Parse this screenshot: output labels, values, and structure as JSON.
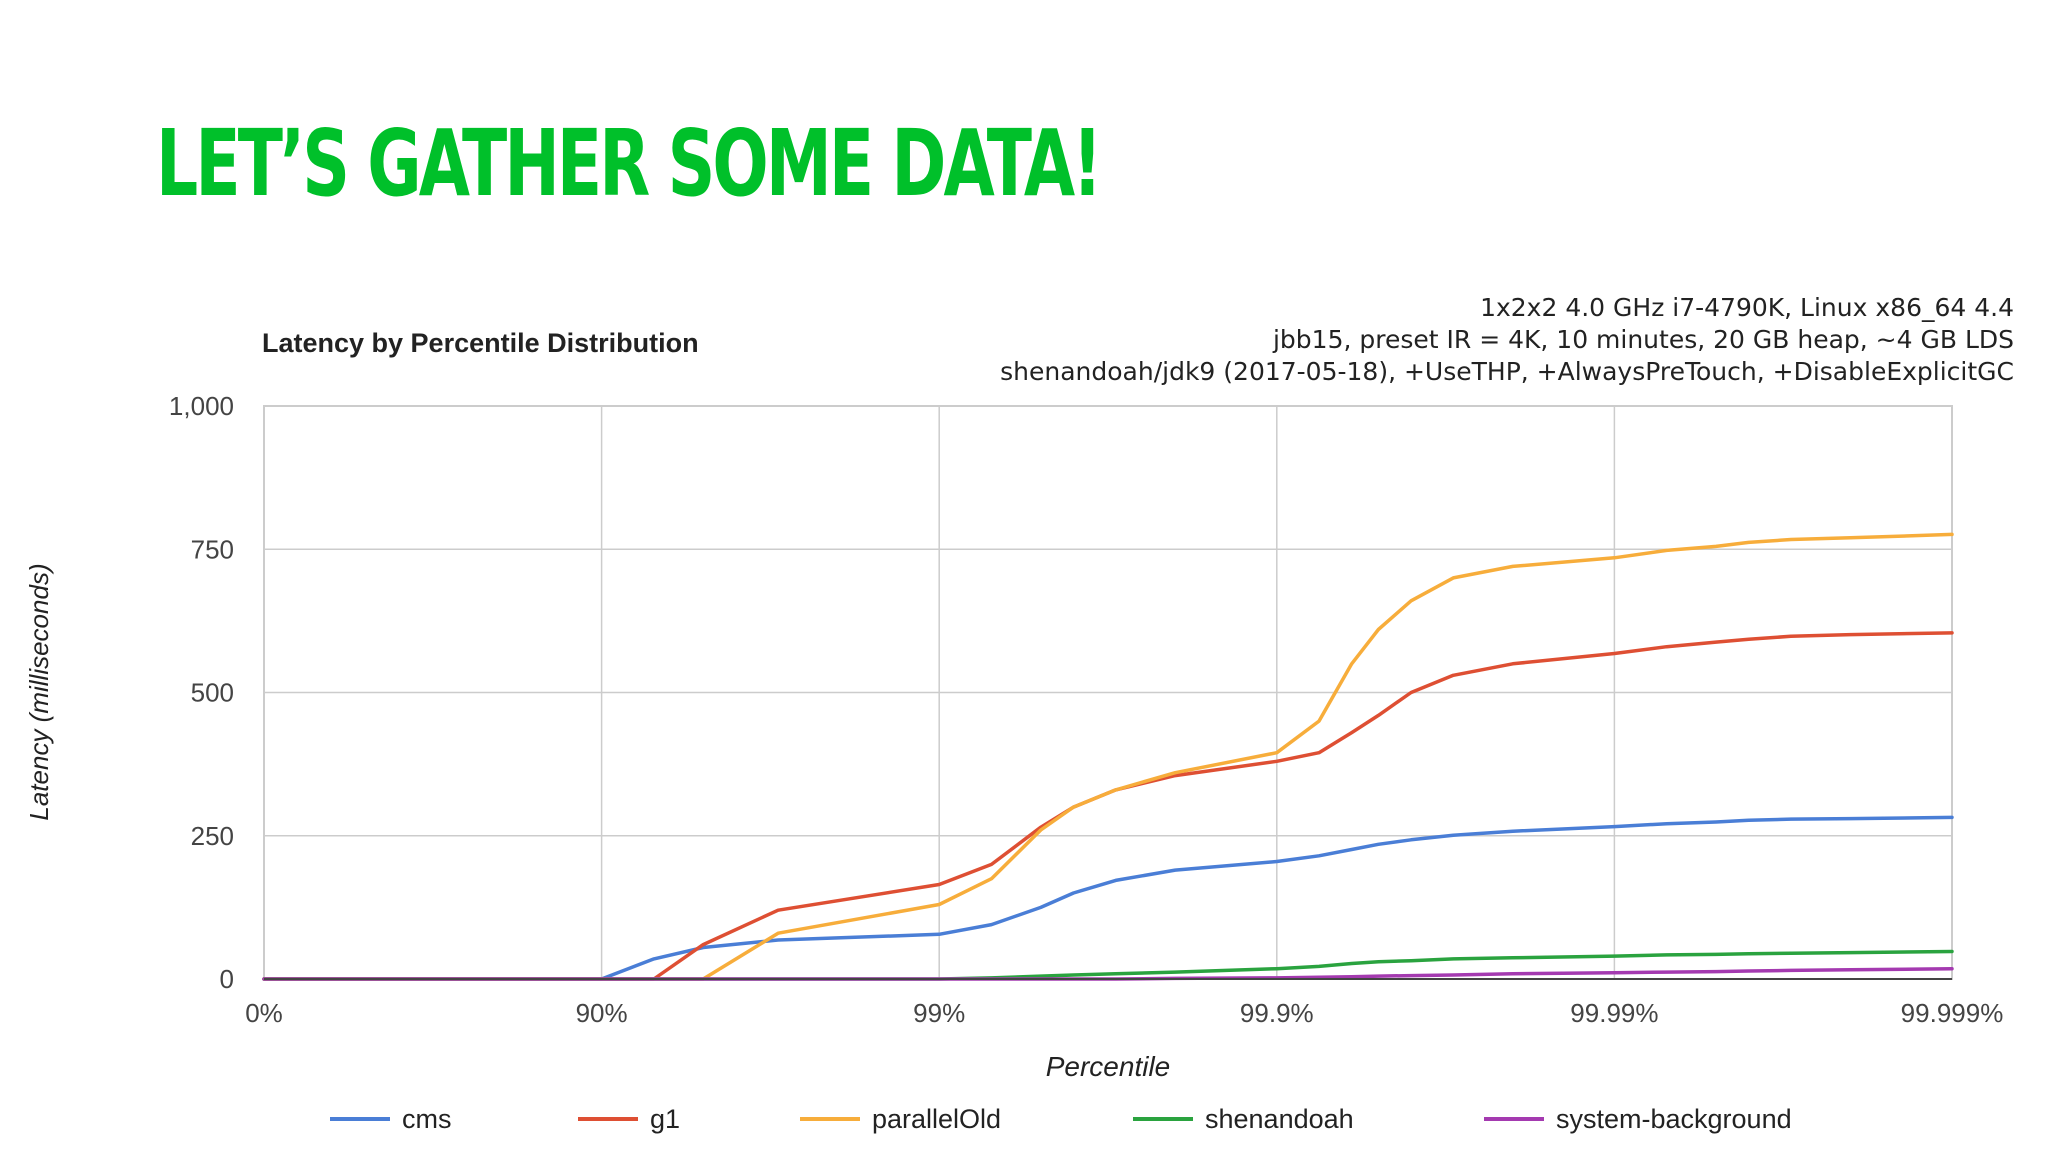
{
  "slide": {
    "title": "LET’S GATHER SOME DATA!",
    "title_color": "#00c02a"
  },
  "chart_data": {
    "type": "line",
    "title": "Latency by Percentile Distribution",
    "subtitle_lines": [
      "1x2x2 4.0 GHz i7-4790K, Linux x86_64 4.4",
      "jbb15, preset IR = 4K, 10 minutes, 20 GB heap, ~4 GB LDS",
      "shenandoah/jdk9 (2017-05-18), +UseTHP, +AlwaysPreTouch, +DisableExplicitGC"
    ],
    "xlabel": "Percentile",
    "ylabel": "Latency (milliseconds)",
    "x_scale": "log-percentile (nines)",
    "x_ticks": [
      "0%",
      "90%",
      "99%",
      "99.9%",
      "99.99%",
      "99.999%"
    ],
    "y_ticks": [
      "0",
      "250",
      "500",
      "750",
      "1,000"
    ],
    "ylim": [
      0,
      1000
    ],
    "grid": true,
    "legend_position": "bottom",
    "x": [
      0,
      90,
      93,
      95,
      97,
      99,
      99.3,
      99.5,
      99.6,
      99.7,
      99.8,
      99.9,
      99.925,
      99.94,
      99.95,
      99.96,
      99.97,
      99.98,
      99.99,
      99.993,
      99.995,
      99.996,
      99.997,
      99.998,
      99.999
    ],
    "series": [
      {
        "name": "cms",
        "color": "#4a7ed6",
        "values": [
          0,
          0,
          35,
          55,
          68,
          78,
          95,
          125,
          150,
          172,
          190,
          205,
          215,
          226,
          235,
          243,
          251,
          258,
          266,
          271,
          274,
          277,
          279,
          280,
          282
        ]
      },
      {
        "name": "g1",
        "color": "#de4f33",
        "values": [
          0,
          0,
          0,
          60,
          120,
          165,
          200,
          265,
          300,
          330,
          355,
          380,
          395,
          430,
          460,
          500,
          530,
          550,
          568,
          580,
          588,
          593,
          598,
          601,
          604
        ]
      },
      {
        "name": "parallelOld",
        "color": "#f7ad3b",
        "values": [
          0,
          0,
          0,
          0,
          80,
          130,
          175,
          260,
          300,
          330,
          360,
          395,
          450,
          550,
          610,
          660,
          700,
          720,
          735,
          748,
          755,
          762,
          767,
          770,
          776
        ]
      },
      {
        "name": "shenandoah",
        "color": "#2aa33f",
        "values": [
          0,
          0,
          0,
          0,
          0,
          0,
          2,
          5,
          7,
          9,
          12,
          18,
          22,
          27,
          30,
          32,
          35,
          37,
          40,
          42,
          43,
          44,
          45,
          46,
          48
        ]
      },
      {
        "name": "system-background",
        "color": "#a43ab0",
        "values": [
          0,
          0,
          0,
          0,
          0,
          0,
          0,
          0,
          0,
          0,
          1,
          2,
          3,
          4,
          5,
          6,
          7,
          9,
          11,
          12,
          13,
          14,
          15,
          16,
          18
        ]
      }
    ]
  }
}
